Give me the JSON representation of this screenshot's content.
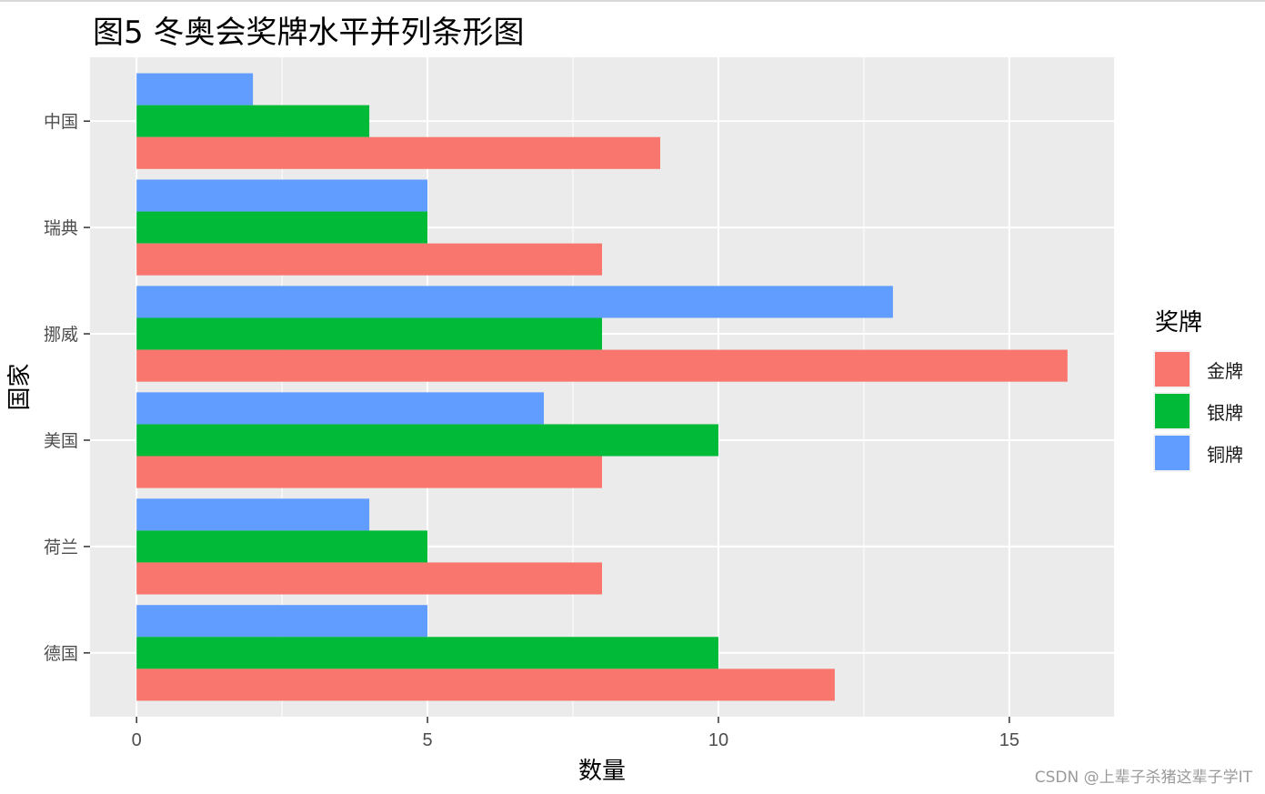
{
  "title": "图5 冬奥会奖牌水平并列条形图",
  "watermark": "CSDN @上辈子杀猪这辈子学IT",
  "chart_data": {
    "type": "bar",
    "orientation": "horizontal",
    "title": "图5 冬奥会奖牌水平并列条形图",
    "xlabel": "数量",
    "ylabel": "国家",
    "categories": [
      "中国",
      "瑞典",
      "挪威",
      "美国",
      "荷兰",
      "德国"
    ],
    "series": [
      {
        "name": "金牌",
        "color": "#F8766D",
        "values": [
          9,
          8,
          16,
          8,
          8,
          12
        ]
      },
      {
        "name": "银牌",
        "color": "#00BA38",
        "values": [
          4,
          5,
          8,
          10,
          5,
          10
        ]
      },
      {
        "name": "铜牌",
        "color": "#619CFF",
        "values": [
          2,
          5,
          13,
          7,
          4,
          5
        ]
      }
    ],
    "xlim": [
      -0.8,
      16.8
    ],
    "xticks": [
      0,
      5,
      10,
      15
    ],
    "grid": true,
    "legend_title": "奖牌",
    "legend_position": "right",
    "panel_background": "#EBEBEB"
  }
}
